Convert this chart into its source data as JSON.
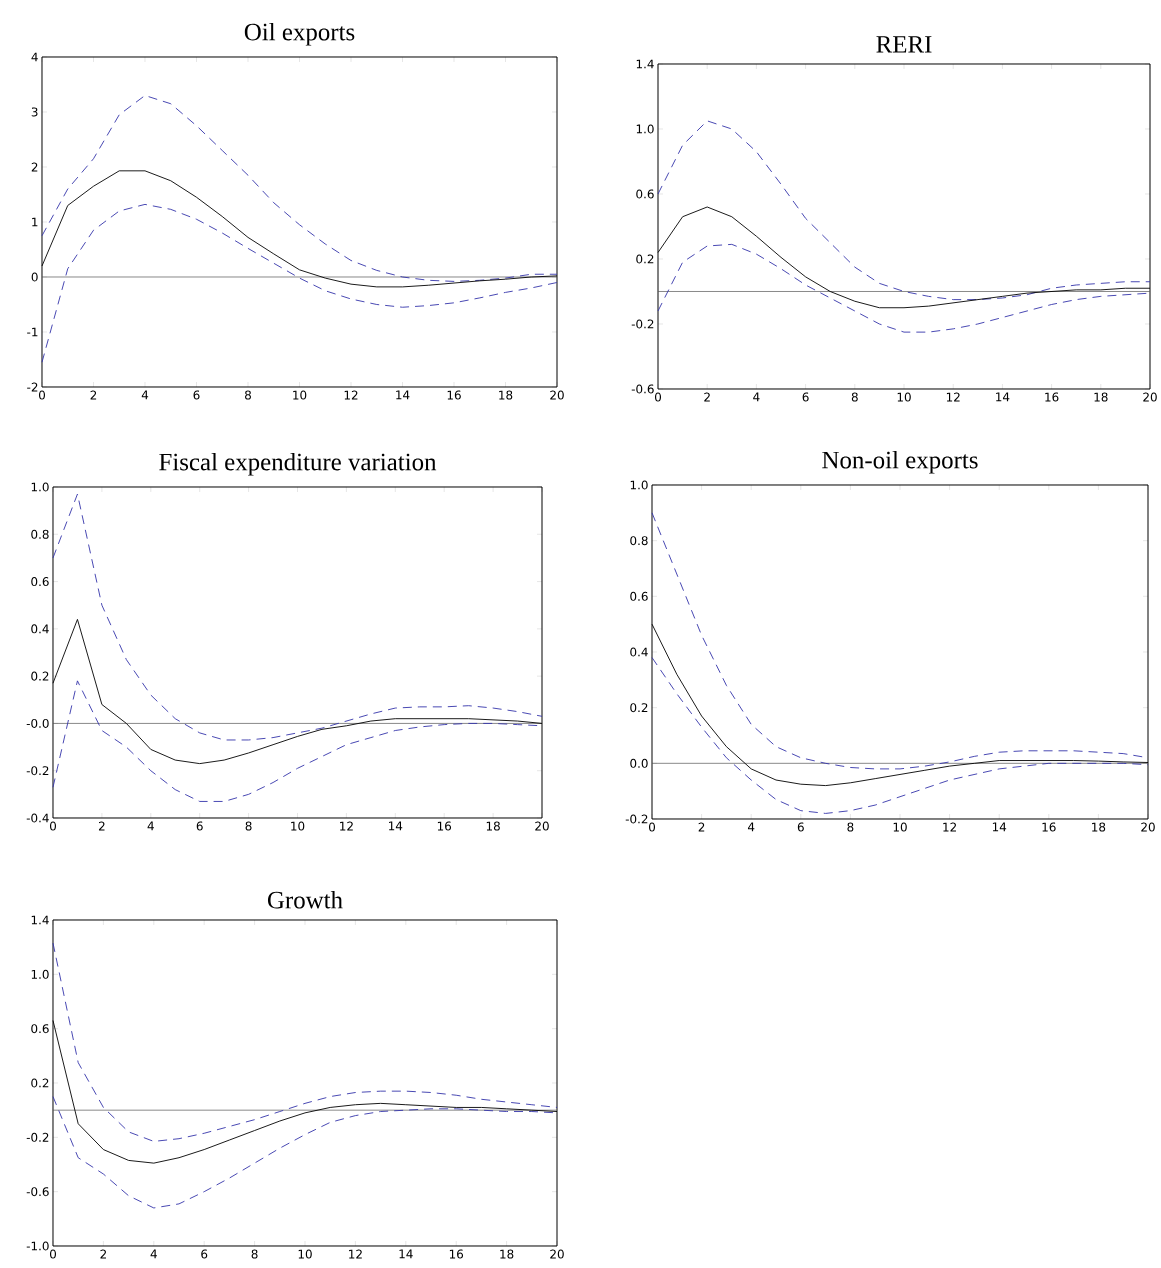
{
  "chart_data": [
    {
      "type": "line",
      "title": "Oil exports",
      "x": [
        0,
        1,
        2,
        3,
        4,
        5,
        6,
        7,
        8,
        9,
        10,
        11,
        12,
        13,
        14,
        15,
        16,
        17,
        18,
        19,
        20
      ],
      "xlim": [
        0,
        20
      ],
      "xticks": [
        0,
        2,
        4,
        6,
        8,
        10,
        12,
        14,
        16,
        18,
        20
      ],
      "ylim": [
        -2,
        4
      ],
      "yticks": [
        -2,
        -1,
        0,
        1,
        2,
        3,
        4
      ],
      "ref_lines": [
        {
          "axis": "y",
          "value": 0,
          "color": "#555555"
        }
      ],
      "series": [
        {
          "color": "#000000",
          "line_style": "solid",
          "values": [
            0.2,
            1.3,
            1.65,
            1.93,
            1.93,
            1.75,
            1.45,
            1.1,
            0.72,
            0.42,
            0.13,
            -0.02,
            -0.13,
            -0.18,
            -0.18,
            -0.15,
            -0.11,
            -0.07,
            -0.04,
            0,
            0.02
          ]
        },
        {
          "color": "#3333aa",
          "line_style": "dashed",
          "values": [
            0.75,
            1.6,
            2.15,
            2.95,
            3.3,
            3.15,
            2.75,
            2.3,
            1.85,
            1.35,
            0.95,
            0.6,
            0.3,
            0.12,
            0.0,
            -0.06,
            -0.08,
            -0.06,
            -0.02,
            0.05,
            0.05
          ]
        },
        {
          "color": "#3333aa",
          "line_style": "dashed",
          "values": [
            -1.55,
            0.15,
            0.85,
            1.2,
            1.32,
            1.23,
            1.05,
            0.8,
            0.52,
            0.25,
            -0.02,
            -0.25,
            -0.4,
            -0.5,
            -0.55,
            -0.52,
            -0.47,
            -0.38,
            -0.28,
            -0.2,
            -0.1
          ]
        }
      ]
    },
    {
      "type": "line",
      "title": "RERI",
      "x": [
        0,
        1,
        2,
        3,
        4,
        5,
        6,
        7,
        8,
        9,
        10,
        11,
        12,
        13,
        14,
        15,
        16,
        17,
        18,
        19,
        20
      ],
      "xlim": [
        0,
        20
      ],
      "xticks": [
        0,
        2,
        4,
        6,
        8,
        10,
        12,
        14,
        16,
        18,
        20
      ],
      "ylim": [
        -0.6,
        1.4
      ],
      "yticks": [
        -0.6,
        -0.2,
        0.2,
        0.6,
        {
          "value": 1.0,
          "label": "1.0"
        },
        1.4
      ],
      "ref_lines": [
        {
          "axis": "y",
          "value": 0,
          "color": "#555555"
        }
      ],
      "series": [
        {
          "color": "#000000",
          "line_style": "solid",
          "values": [
            0.24,
            0.46,
            0.52,
            0.46,
            0.34,
            0.21,
            0.09,
            0.0,
            -0.06,
            -0.1,
            -0.1,
            -0.09,
            -0.07,
            -0.05,
            -0.03,
            -0.01,
            0.0,
            0.01,
            0.01,
            0.02,
            0.02
          ]
        },
        {
          "color": "#3333aa",
          "line_style": "dashed",
          "values": [
            0.6,
            0.9,
            1.05,
            1.0,
            0.86,
            0.66,
            0.45,
            0.3,
            0.15,
            0.05,
            0.0,
            -0.03,
            -0.05,
            -0.05,
            -0.04,
            -0.02,
            0.02,
            0.04,
            0.05,
            0.06,
            0.06
          ]
        },
        {
          "color": "#3333aa",
          "line_style": "dashed",
          "values": [
            -0.12,
            0.18,
            0.28,
            0.29,
            0.23,
            0.14,
            0.04,
            -0.04,
            -0.12,
            -0.2,
            -0.25,
            -0.25,
            -0.23,
            -0.2,
            -0.16,
            -0.12,
            -0.08,
            -0.05,
            -0.03,
            -0.02,
            -0.01
          ]
        }
      ]
    },
    {
      "type": "line",
      "title": "Fiscal expenditure variation",
      "x": [
        0,
        1,
        2,
        3,
        4,
        5,
        6,
        7,
        8,
        9,
        10,
        11,
        12,
        13,
        14,
        15,
        16,
        17,
        18,
        19,
        20
      ],
      "xlim": [
        0,
        20
      ],
      "xticks": [
        0,
        2,
        4,
        6,
        8,
        10,
        12,
        14,
        16,
        18,
        20
      ],
      "ylim": [
        -0.4,
        1.0
      ],
      "yticks": [
        -0.4,
        -0.2,
        {
          "value": 0,
          "label": "-0.0"
        },
        0.2,
        0.4,
        0.6,
        0.8,
        {
          "value": 1.0,
          "label": "1.0"
        }
      ],
      "ref_lines": [
        {
          "axis": "y",
          "value": 0,
          "color": "#555555"
        }
      ],
      "series": [
        {
          "color": "#000000",
          "line_style": "solid",
          "values": [
            0.17,
            0.44,
            0.08,
            0.0,
            -0.11,
            -0.155,
            -0.17,
            -0.155,
            -0.125,
            -0.09,
            -0.055,
            -0.025,
            -0.01,
            0.01,
            0.02,
            0.02,
            0.02,
            0.02,
            0.015,
            0.01,
            0.0
          ]
        },
        {
          "color": "#3333aa",
          "line_style": "dashed",
          "values": [
            0.7,
            0.97,
            0.5,
            0.27,
            0.12,
            0.02,
            -0.04,
            -0.07,
            -0.07,
            -0.06,
            -0.04,
            -0.02,
            0.01,
            0.04,
            0.065,
            0.07,
            0.07,
            0.075,
            0.065,
            0.05,
            0.03
          ]
        },
        {
          "color": "#3333aa",
          "line_style": "dashed",
          "values": [
            -0.27,
            0.18,
            -0.03,
            -0.1,
            -0.2,
            -0.28,
            -0.33,
            -0.33,
            -0.3,
            -0.25,
            -0.19,
            -0.14,
            -0.09,
            -0.06,
            -0.03,
            -0.015,
            -0.005,
            0.0,
            0.0,
            -0.005,
            -0.01
          ]
        }
      ]
    },
    {
      "type": "line",
      "title": "Non-oil exports",
      "x": [
        0,
        1,
        2,
        3,
        4,
        5,
        6,
        7,
        8,
        9,
        10,
        11,
        12,
        13,
        14,
        15,
        16,
        17,
        18,
        19,
        20
      ],
      "xlim": [
        0,
        20
      ],
      "xticks": [
        0,
        2,
        4,
        6,
        8,
        10,
        12,
        14,
        16,
        18,
        20
      ],
      "ylim": [
        -0.2,
        1.0
      ],
      "yticks": [
        -0.2,
        {
          "value": 0,
          "label": "0.0"
        },
        0.2,
        0.4,
        0.6,
        0.8,
        {
          "value": 1.0,
          "label": "1.0"
        }
      ],
      "ref_lines": [
        {
          "axis": "y",
          "value": 0,
          "color": "#555555"
        }
      ],
      "series": [
        {
          "color": "#000000",
          "line_style": "solid",
          "values": [
            0.5,
            0.32,
            0.17,
            0.06,
            -0.02,
            -0.06,
            -0.075,
            -0.08,
            -0.07,
            -0.055,
            -0.04,
            -0.025,
            -0.01,
            0.0,
            0.01,
            0.01,
            0.01,
            0.01,
            0.008,
            0.005,
            0.003
          ]
        },
        {
          "color": "#3333aa",
          "line_style": "dashed",
          "values": [
            0.9,
            0.68,
            0.46,
            0.28,
            0.14,
            0.06,
            0.02,
            0.0,
            -0.015,
            -0.02,
            -0.02,
            -0.01,
            0.005,
            0.025,
            0.04,
            0.045,
            0.045,
            0.045,
            0.04,
            0.035,
            0.02
          ]
        },
        {
          "color": "#3333aa",
          "line_style": "dashed",
          "values": [
            0.38,
            0.25,
            0.13,
            0.02,
            -0.06,
            -0.13,
            -0.17,
            -0.18,
            -0.17,
            -0.15,
            -0.12,
            -0.09,
            -0.06,
            -0.04,
            -0.02,
            -0.01,
            0.0,
            0.0,
            0.0,
            0.0,
            -0.005
          ]
        }
      ]
    },
    {
      "type": "line",
      "title": "Growth",
      "x": [
        0,
        1,
        2,
        3,
        4,
        5,
        6,
        7,
        8,
        9,
        10,
        11,
        12,
        13,
        14,
        15,
        16,
        17,
        18,
        19,
        20
      ],
      "xlim": [
        0,
        20
      ],
      "xticks": [
        0,
        2,
        4,
        6,
        8,
        10,
        12,
        14,
        16,
        18,
        20
      ],
      "ylim": [
        -1.0,
        1.4
      ],
      "yticks": [
        {
          "value": -1.0,
          "label": "-1.0"
        },
        -0.6,
        -0.2,
        0.2,
        0.6,
        {
          "value": 1.0,
          "label": "1.0"
        },
        1.4
      ],
      "ref_lines": [
        {
          "axis": "y",
          "value": 0,
          "color": "#555555"
        }
      ],
      "series": [
        {
          "color": "#000000",
          "line_style": "solid",
          "values": [
            0.66,
            -0.1,
            -0.29,
            -0.37,
            -0.39,
            -0.35,
            -0.29,
            -0.22,
            -0.15,
            -0.08,
            -0.02,
            0.02,
            0.04,
            0.05,
            0.04,
            0.03,
            0.02,
            0.02,
            0.01,
            0.0,
            -0.01
          ]
        },
        {
          "color": "#3333aa",
          "line_style": "dashed",
          "values": [
            1.23,
            0.35,
            0.02,
            -0.16,
            -0.23,
            -0.21,
            -0.17,
            -0.12,
            -0.07,
            -0.01,
            0.05,
            0.1,
            0.13,
            0.14,
            0.14,
            0.13,
            0.11,
            0.08,
            0.06,
            0.04,
            0.02
          ]
        },
        {
          "color": "#3333aa",
          "line_style": "dashed",
          "values": [
            0.1,
            -0.35,
            -0.47,
            -0.63,
            -0.72,
            -0.69,
            -0.6,
            -0.5,
            -0.39,
            -0.28,
            -0.18,
            -0.09,
            -0.04,
            -0.01,
            0.0,
            0.01,
            0.01,
            0.0,
            -0.01,
            -0.01,
            -0.02
          ]
        }
      ]
    }
  ]
}
